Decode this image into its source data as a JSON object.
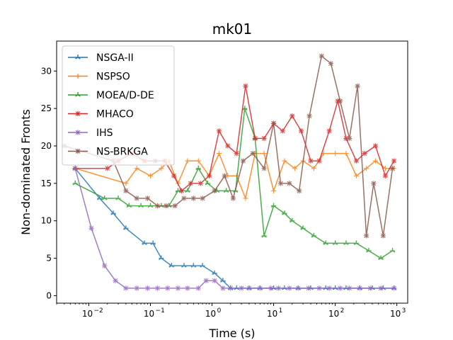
{
  "chart_data": {
    "type": "line",
    "title": "mk01",
    "xlabel": "Time (s)",
    "ylabel": "Non-dominated Fronts",
    "xscale": "log",
    "xlim": [
      0.003,
      1500
    ],
    "ylim": [
      -1,
      34
    ],
    "x_ticks": [
      0.01,
      0.1,
      1,
      10,
      100,
      1000
    ],
    "x_tick_labels": [
      "10",
      "10",
      "10",
      "10",
      "10",
      "10"
    ],
    "x_tick_exponents": [
      "−2",
      "−1",
      "0",
      "1",
      "2",
      "3"
    ],
    "y_ticks": [
      0,
      5,
      10,
      15,
      20,
      25,
      30
    ],
    "y_tick_labels": [
      "0",
      "5",
      "10",
      "15",
      "20",
      "25",
      "30"
    ],
    "legend_position": "upper-left",
    "grid": false,
    "series": [
      {
        "name": "NSGA-II",
        "color": "#1f77b4",
        "marker": "tri-star",
        "x": [
          0.006,
          0.015,
          0.025,
          0.04,
          0.08,
          0.11,
          0.15,
          0.22,
          0.35,
          0.5,
          0.7,
          1.1,
          1.5,
          2,
          2.5,
          4,
          6,
          10,
          15,
          25,
          40,
          70,
          100,
          150,
          250,
          400,
          600,
          900
        ],
        "y": [
          17,
          13,
          11,
          9,
          7,
          7,
          5,
          4,
          4,
          4,
          4,
          3,
          2,
          1,
          1,
          1,
          1,
          1,
          1,
          1,
          1,
          1,
          1,
          1,
          1,
          1,
          1,
          1
        ]
      },
      {
        "name": "NSPSO",
        "color": "#ff7f0e",
        "marker": "plus",
        "x": [
          0.006,
          0.04,
          0.06,
          0.1,
          0.15,
          0.2,
          0.28,
          0.4,
          0.6,
          0.9,
          1.3,
          1.8,
          2.5,
          3.5,
          5,
          7,
          10,
          15,
          22,
          30,
          45,
          65,
          100,
          150,
          220,
          320,
          450,
          650,
          900
        ],
        "y": [
          17,
          15,
          17,
          16,
          17,
          18,
          15,
          18,
          18,
          16,
          19,
          16,
          16,
          13,
          19,
          19,
          14,
          18,
          17,
          18,
          17,
          19,
          19,
          19,
          16,
          17,
          18,
          17,
          17
        ]
      },
      {
        "name": "MOEA/D-DE",
        "color": "#2ca02c",
        "marker": "tri-star",
        "x": [
          0.006,
          0.018,
          0.03,
          0.045,
          0.07,
          0.1,
          0.15,
          0.2,
          0.28,
          0.4,
          0.6,
          0.85,
          1.2,
          1.7,
          2.4,
          3.4,
          5,
          7,
          10,
          15,
          20,
          30,
          45,
          70,
          100,
          150,
          220,
          350,
          550,
          850
        ],
        "y": [
          15,
          13,
          13,
          12,
          12,
          12,
          12,
          12,
          14,
          14,
          17,
          15,
          14,
          14,
          14,
          25,
          21,
          8,
          12,
          11,
          10,
          9,
          8,
          7,
          7,
          7,
          7,
          6,
          5,
          6
        ]
      },
      {
        "name": "MHACO",
        "color": "#d62728",
        "marker": "x-star",
        "x": [
          0.006,
          0.02,
          0.03,
          0.05,
          0.08,
          0.12,
          0.17,
          0.24,
          0.32,
          0.45,
          0.65,
          0.9,
          1.3,
          1.8,
          2.5,
          3.5,
          5,
          7,
          10,
          14,
          20,
          28,
          40,
          55,
          80,
          110,
          150,
          220,
          300,
          450,
          650,
          900
        ],
        "y": [
          17,
          17,
          18,
          19,
          18,
          18,
          18,
          16,
          14,
          15,
          15,
          16,
          22,
          20,
          19,
          28,
          21,
          21,
          23,
          22,
          24,
          22,
          18,
          18,
          22,
          26,
          21,
          18,
          19,
          20,
          16,
          18
        ]
      },
      {
        "name": "IHS",
        "color": "#9467bd",
        "marker": "x-star",
        "x": [
          0.006,
          0.011,
          0.018,
          0.027,
          0.04,
          0.06,
          0.09,
          0.13,
          0.19,
          0.28,
          0.4,
          0.6,
          0.8,
          1.1,
          1.5,
          2,
          3,
          4,
          6,
          9,
          12,
          18,
          25,
          37,
          55,
          80,
          120,
          170,
          250,
          370,
          550,
          900
        ],
        "y": [
          17,
          9,
          4,
          2,
          1,
          1,
          1,
          1,
          1,
          1,
          1,
          1,
          2,
          2,
          1,
          1,
          1,
          1,
          1,
          1,
          1,
          1,
          1,
          1,
          1,
          1,
          1,
          1,
          1,
          1,
          1,
          1
        ]
      },
      {
        "name": "NS-BRKGA",
        "color": "#8c564b",
        "marker": "x-star",
        "x": [
          0.004,
          0.025,
          0.04,
          0.06,
          0.09,
          0.13,
          0.18,
          0.25,
          0.35,
          0.5,
          0.7,
          1.1,
          1.6,
          2.2,
          3.2,
          4.6,
          7,
          10,
          13,
          18,
          26,
          38,
          60,
          85,
          120,
          170,
          230,
          320,
          420,
          600,
          850
        ],
        "y": [
          20,
          18,
          14,
          13,
          13,
          12,
          12,
          12,
          13,
          13,
          13,
          14,
          16,
          13,
          18,
          19,
          17,
          23,
          15,
          15,
          14,
          24,
          32,
          31,
          26,
          21,
          28,
          8,
          15,
          8,
          17
        ]
      }
    ]
  }
}
